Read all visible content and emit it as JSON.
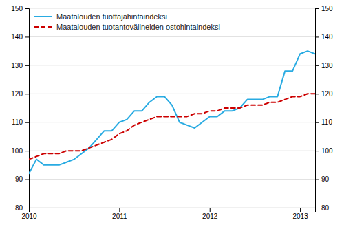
{
  "chart_data": {
    "type": "line",
    "categories": [
      "2010",
      null,
      null,
      null,
      null,
      null,
      null,
      null,
      null,
      null,
      null,
      null,
      "2011",
      null,
      null,
      null,
      null,
      null,
      null,
      null,
      null,
      null,
      null,
      null,
      "2012",
      null,
      null,
      null,
      null,
      null,
      null,
      null,
      null,
      null,
      null,
      null,
      "2013",
      null,
      null
    ],
    "series": [
      {
        "name": "Maatalouden tuottajahintaindeksi",
        "color": "#29ABE2",
        "line_style": "solid",
        "values": [
          92,
          97,
          95,
          95,
          95,
          96,
          97,
          99,
          101,
          104,
          107,
          107,
          110,
          111,
          114,
          114,
          117,
          119,
          119,
          116,
          110,
          109,
          108,
          110,
          112,
          112,
          114,
          114,
          115,
          118,
          118,
          118,
          119,
          119,
          128,
          128,
          134,
          135,
          134
        ]
      },
      {
        "name": "Maatalouden tuotantovälineiden ostohintaindeksi",
        "color": "#CC0000",
        "line_style": "dashed",
        "values": [
          97,
          98,
          99,
          99,
          99,
          100,
          100,
          100,
          101,
          102,
          103,
          104,
          106,
          107,
          109,
          110,
          111,
          112,
          112,
          112,
          112,
          112,
          113,
          113,
          114,
          114,
          115,
          115,
          115,
          116,
          116,
          116,
          117,
          117,
          118,
          119,
          119,
          120,
          120
        ]
      }
    ],
    "ylim": [
      80,
      150
    ],
    "yticks": [
      80,
      90,
      100,
      110,
      120,
      130,
      140,
      150
    ],
    "y2lim": [
      80,
      150
    ],
    "y2ticks": [
      80,
      90,
      100,
      110,
      120,
      130,
      140,
      150
    ],
    "grid": true,
    "legend": "top-left"
  }
}
